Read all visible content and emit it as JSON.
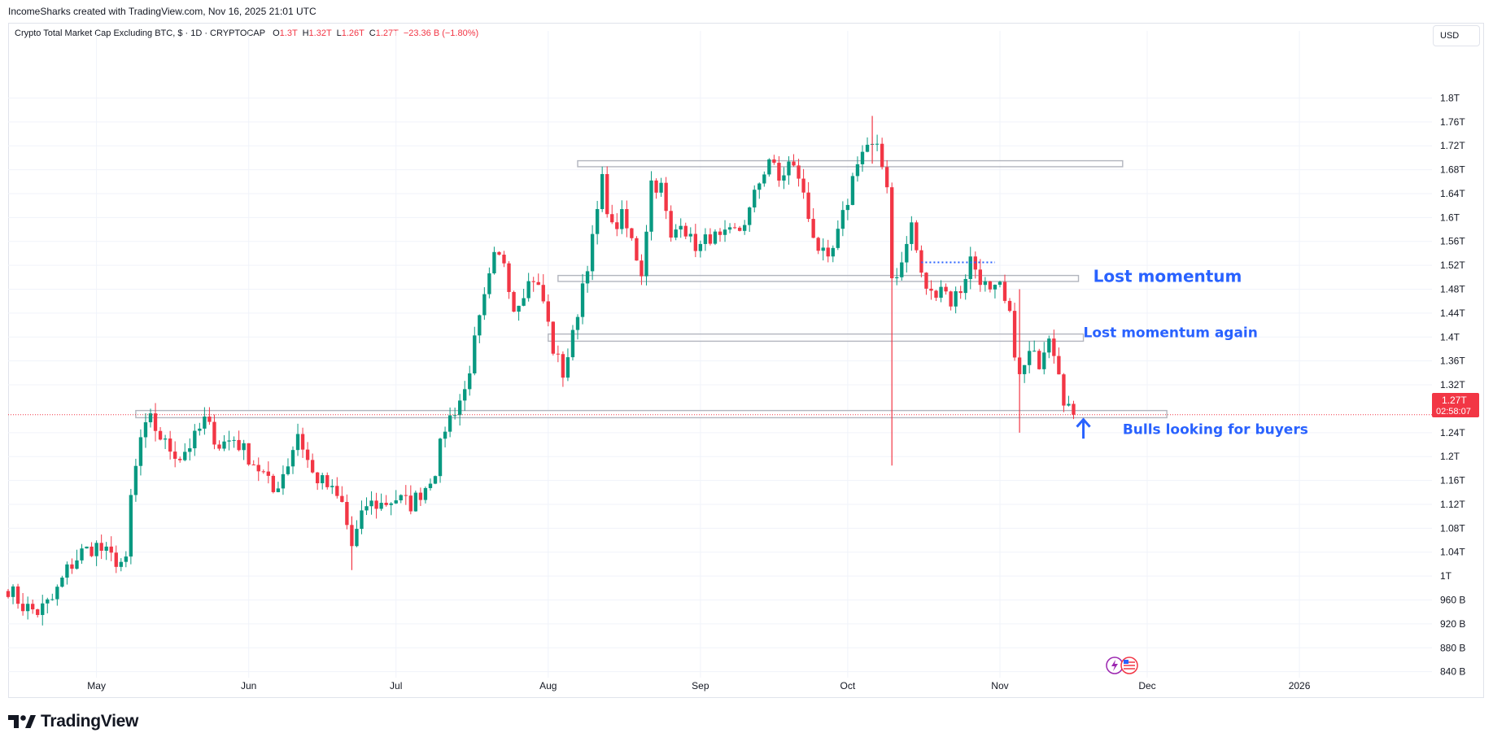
{
  "header": {
    "caption": "IncomeSharks created with TradingView.com, Nov 16, 2025 21:01 UTC"
  },
  "legend": {
    "symbol": "Crypto Total Market Cap Excluding BTC, $ · 1D · CRYPTOCAP",
    "o_label": "O",
    "o_value": "1.3T",
    "h_label": "H",
    "h_value": "1.32T",
    "l_label": "L",
    "l_value": "1.26T",
    "c_label": "C",
    "c_value": "1.27T",
    "change": "−23.36 B (−1.80%)"
  },
  "currency_label": "USD",
  "price_tag": {
    "value": "1.27T",
    "countdown": "02:58:07"
  },
  "branding": {
    "logo_text": "TradingView"
  },
  "colors": {
    "up": "#089981",
    "down": "#f23645",
    "annotation": "#2962ff",
    "zone": "#b2b5be"
  },
  "chart_data": {
    "type": "candlestick",
    "title": "Crypto Total Market Cap Excluding BTC, $ · 1D · CRYPTOCAP",
    "y_unit": "USD",
    "y_range": [
      0.83,
      1.885
    ],
    "y_ticks": [
      {
        "v": 1.8,
        "label": "1.8T"
      },
      {
        "v": 1.76,
        "label": "1.76T"
      },
      {
        "v": 1.72,
        "label": "1.72T"
      },
      {
        "v": 1.68,
        "label": "1.68T"
      },
      {
        "v": 1.64,
        "label": "1.64T"
      },
      {
        "v": 1.6,
        "label": "1.6T"
      },
      {
        "v": 1.56,
        "label": "1.56T"
      },
      {
        "v": 1.52,
        "label": "1.52T"
      },
      {
        "v": 1.48,
        "label": "1.48T"
      },
      {
        "v": 1.44,
        "label": "1.44T"
      },
      {
        "v": 1.4,
        "label": "1.4T"
      },
      {
        "v": 1.36,
        "label": "1.36T"
      },
      {
        "v": 1.32,
        "label": "1.32T"
      },
      {
        "v": 1.24,
        "label": "1.24T"
      },
      {
        "v": 1.2,
        "label": "1.2T"
      },
      {
        "v": 1.16,
        "label": "1.16T"
      },
      {
        "v": 1.12,
        "label": "1.12T"
      },
      {
        "v": 1.08,
        "label": "1.08T"
      },
      {
        "v": 1.04,
        "label": "1.04T"
      },
      {
        "v": 1.0,
        "label": "1T"
      },
      {
        "v": 0.96,
        "label": "960 B"
      },
      {
        "v": 0.92,
        "label": "920 B"
      },
      {
        "v": 0.88,
        "label": "880 B"
      },
      {
        "v": 0.84,
        "label": "840 B"
      }
    ],
    "x_ticks": [
      {
        "date": "2025-05-01",
        "label": "May"
      },
      {
        "date": "2025-06-01",
        "label": "Jun"
      },
      {
        "date": "2025-07-01",
        "label": "Jul"
      },
      {
        "date": "2025-08-01",
        "label": "Aug"
      },
      {
        "date": "2025-09-01",
        "label": "Sep"
      },
      {
        "date": "2025-10-01",
        "label": "Oct"
      },
      {
        "date": "2025-11-01",
        "label": "Nov"
      },
      {
        "date": "2025-12-01",
        "label": "Dec"
      },
      {
        "date": "2026-01-01",
        "label": "2026"
      }
    ],
    "x_range": [
      "2025-04-13",
      "2026-01-28"
    ],
    "last_close": 1.27,
    "ohlc_path": [
      [
        "2025-04-13",
        0.98
      ],
      [
        "2025-04-16",
        0.95
      ],
      [
        "2025-04-19",
        0.94
      ],
      [
        "2025-04-22",
        0.96
      ],
      [
        "2025-04-25",
        1.01
      ],
      [
        "2025-04-28",
        1.04
      ],
      [
        "2025-05-01",
        1.05
      ],
      [
        "2025-05-04",
        1.03
      ],
      [
        "2025-05-07",
        1.02
      ],
      [
        "2025-05-08",
        1.13
      ],
      [
        "2025-05-10",
        1.23
      ],
      [
        "2025-05-12",
        1.26
      ],
      [
        "2025-05-15",
        1.22
      ],
      [
        "2025-05-18",
        1.2
      ],
      [
        "2025-05-21",
        1.23
      ],
      [
        "2025-05-23",
        1.26
      ],
      [
        "2025-05-26",
        1.22
      ],
      [
        "2025-05-29",
        1.23
      ],
      [
        "2025-06-01",
        1.2
      ],
      [
        "2025-06-04",
        1.17
      ],
      [
        "2025-06-06",
        1.14
      ],
      [
        "2025-06-09",
        1.19
      ],
      [
        "2025-06-11",
        1.24
      ],
      [
        "2025-06-14",
        1.17
      ],
      [
        "2025-06-17",
        1.15
      ],
      [
        "2025-06-20",
        1.12
      ],
      [
        "2025-06-22",
        1.05
      ],
      [
        "2025-06-25",
        1.12
      ],
      [
        "2025-06-28",
        1.12
      ],
      [
        "2025-07-01",
        1.13
      ],
      [
        "2025-07-04",
        1.12
      ],
      [
        "2025-07-07",
        1.15
      ],
      [
        "2025-07-09",
        1.18
      ],
      [
        "2025-07-11",
        1.25
      ],
      [
        "2025-07-13",
        1.28
      ],
      [
        "2025-07-15",
        1.31
      ],
      [
        "2025-07-17",
        1.39
      ],
      [
        "2025-07-19",
        1.46
      ],
      [
        "2025-07-21",
        1.53
      ],
      [
        "2025-07-23",
        1.53
      ],
      [
        "2025-07-25",
        1.45
      ],
      [
        "2025-07-27",
        1.48
      ],
      [
        "2025-07-29",
        1.5
      ],
      [
        "2025-07-31",
        1.46
      ],
      [
        "2025-08-02",
        1.38
      ],
      [
        "2025-08-04",
        1.34
      ],
      [
        "2025-08-06",
        1.4
      ],
      [
        "2025-08-08",
        1.49
      ],
      [
        "2025-08-10",
        1.56
      ],
      [
        "2025-08-12",
        1.66
      ],
      [
        "2025-08-14",
        1.58
      ],
      [
        "2025-08-16",
        1.6
      ],
      [
        "2025-08-18",
        1.56
      ],
      [
        "2025-08-20",
        1.51
      ],
      [
        "2025-08-22",
        1.66
      ],
      [
        "2025-08-24",
        1.65
      ],
      [
        "2025-08-26",
        1.56
      ],
      [
        "2025-08-28",
        1.6
      ],
      [
        "2025-08-30",
        1.56
      ],
      [
        "2025-09-01",
        1.55
      ],
      [
        "2025-09-03",
        1.57
      ],
      [
        "2025-09-05",
        1.56
      ],
      [
        "2025-09-07",
        1.57
      ],
      [
        "2025-09-09",
        1.58
      ],
      [
        "2025-09-11",
        1.61
      ],
      [
        "2025-09-13",
        1.66
      ],
      [
        "2025-09-15",
        1.7
      ],
      [
        "2025-09-17",
        1.66
      ],
      [
        "2025-09-19",
        1.69
      ],
      [
        "2025-09-21",
        1.67
      ],
      [
        "2025-09-23",
        1.6
      ],
      [
        "2025-09-25",
        1.55
      ],
      [
        "2025-09-27",
        1.52
      ],
      [
        "2025-09-29",
        1.57
      ],
      [
        "2025-10-01",
        1.63
      ],
      [
        "2025-10-03",
        1.7
      ],
      [
        "2025-10-05",
        1.72
      ],
      [
        "2025-10-07",
        1.71
      ],
      [
        "2025-10-09",
        1.66
      ],
      [
        "2025-10-10",
        1.5
      ],
      [
        "2025-10-12",
        1.52
      ],
      [
        "2025-10-14",
        1.59
      ],
      [
        "2025-10-16",
        1.5
      ],
      [
        "2025-10-18",
        1.47
      ],
      [
        "2025-10-20",
        1.49
      ],
      [
        "2025-10-22",
        1.46
      ],
      [
        "2025-10-24",
        1.48
      ],
      [
        "2025-10-26",
        1.53
      ],
      [
        "2025-10-28",
        1.5
      ],
      [
        "2025-10-30",
        1.47
      ],
      [
        "2025-11-01",
        1.48
      ],
      [
        "2025-11-03",
        1.43
      ],
      [
        "2025-11-05",
        1.33
      ],
      [
        "2025-11-07",
        1.37
      ],
      [
        "2025-11-09",
        1.36
      ],
      [
        "2025-11-11",
        1.41
      ],
      [
        "2025-11-13",
        1.35
      ],
      [
        "2025-11-14",
        1.3
      ],
      [
        "2025-11-16",
        1.27
      ]
    ],
    "long_wicks": [
      {
        "date": "2025-10-10",
        "low": 1.185,
        "high": 1.5
      },
      {
        "date": "2025-10-06",
        "low": 1.69,
        "high": 1.77
      },
      {
        "date": "2025-11-05",
        "low": 1.24,
        "high": 1.48
      },
      {
        "date": "2025-06-22",
        "low": 1.01,
        "high": 1.1
      }
    ],
    "zones": [
      {
        "name": "top-zone",
        "start": "2025-08-07",
        "end": "2025-11-26",
        "low": 1.685,
        "high": 1.695
      },
      {
        "name": "upper-zone",
        "start": "2025-08-03",
        "end": "2025-11-17",
        "low": 1.493,
        "high": 1.503
      },
      {
        "name": "middle-zone",
        "start": "2025-08-01",
        "end": "2025-11-18",
        "low": 1.393,
        "high": 1.405
      },
      {
        "name": "support-zone",
        "start": "2025-05-09",
        "end": "2025-12-05",
        "low": 1.265,
        "high": 1.277
      }
    ],
    "dotted_level": {
      "start": "2025-10-16",
      "end": "2025-10-31",
      "value": 1.525
    },
    "annotations": [
      {
        "text": "Lost momentum",
        "date": "2025-11-20",
        "value": 1.492,
        "size": 20
      },
      {
        "text": "Lost momentum again",
        "date": "2025-11-18",
        "value": 1.4,
        "size": 17
      },
      {
        "text": "Bulls looking for buyers",
        "date": "2025-11-26",
        "value": 1.238,
        "size": 17
      }
    ],
    "arrow": {
      "date": "2025-11-18",
      "from": 1.23,
      "to": 1.262
    }
  }
}
